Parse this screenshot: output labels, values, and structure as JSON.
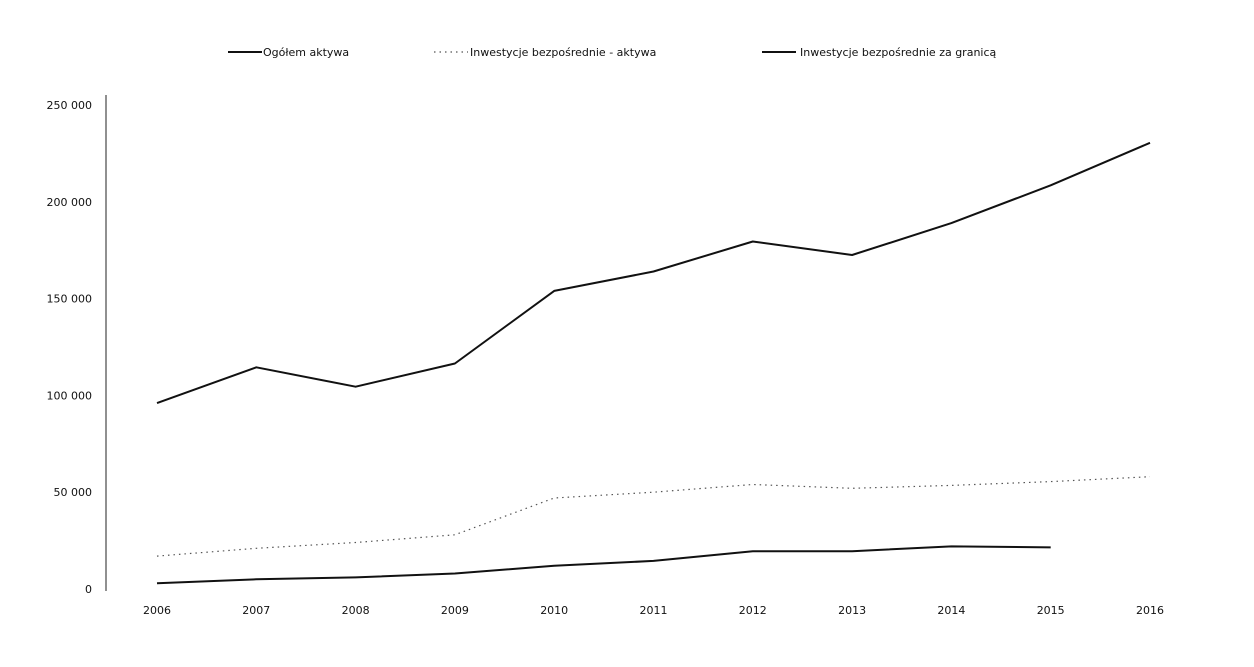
{
  "chart_data": {
    "type": "line",
    "title": "",
    "xlabel": "",
    "ylabel": "",
    "x": [
      "2006",
      "2007",
      "2008",
      "2009",
      "2010",
      "2011",
      "2012",
      "2013",
      "2014",
      "2015",
      "2016"
    ],
    "ylim": [
      0,
      250000
    ],
    "y_ticks": [
      0,
      50000,
      100000,
      150000,
      200000,
      250000
    ],
    "y_tick_labels": [
      "0",
      "50 000",
      "100 000",
      "150 000",
      "200 000",
      "250 000"
    ],
    "grid": false,
    "legend_position": "top",
    "series": [
      {
        "name": "Ogółem aktywa",
        "style": "solid",
        "color": "#111111",
        "values": [
          96000,
          114500,
          104500,
          116500,
          154000,
          164000,
          179500,
          172500,
          189000,
          208500,
          230500
        ]
      },
      {
        "name": "Inwestycje bezpośrednie - aktywa",
        "style": "dotted",
        "color": "#555555",
        "values": [
          17000,
          21000,
          24000,
          28000,
          47000,
          50000,
          54000,
          52000,
          53500,
          55500,
          58000
        ]
      },
      {
        "name": "Inwestycje bezpośrednie za granicą",
        "style": "solid",
        "color": "#111111",
        "values": [
          3000,
          5000,
          6000,
          8000,
          12000,
          14500,
          19500,
          19500,
          22000,
          21500,
          null
        ]
      }
    ]
  }
}
